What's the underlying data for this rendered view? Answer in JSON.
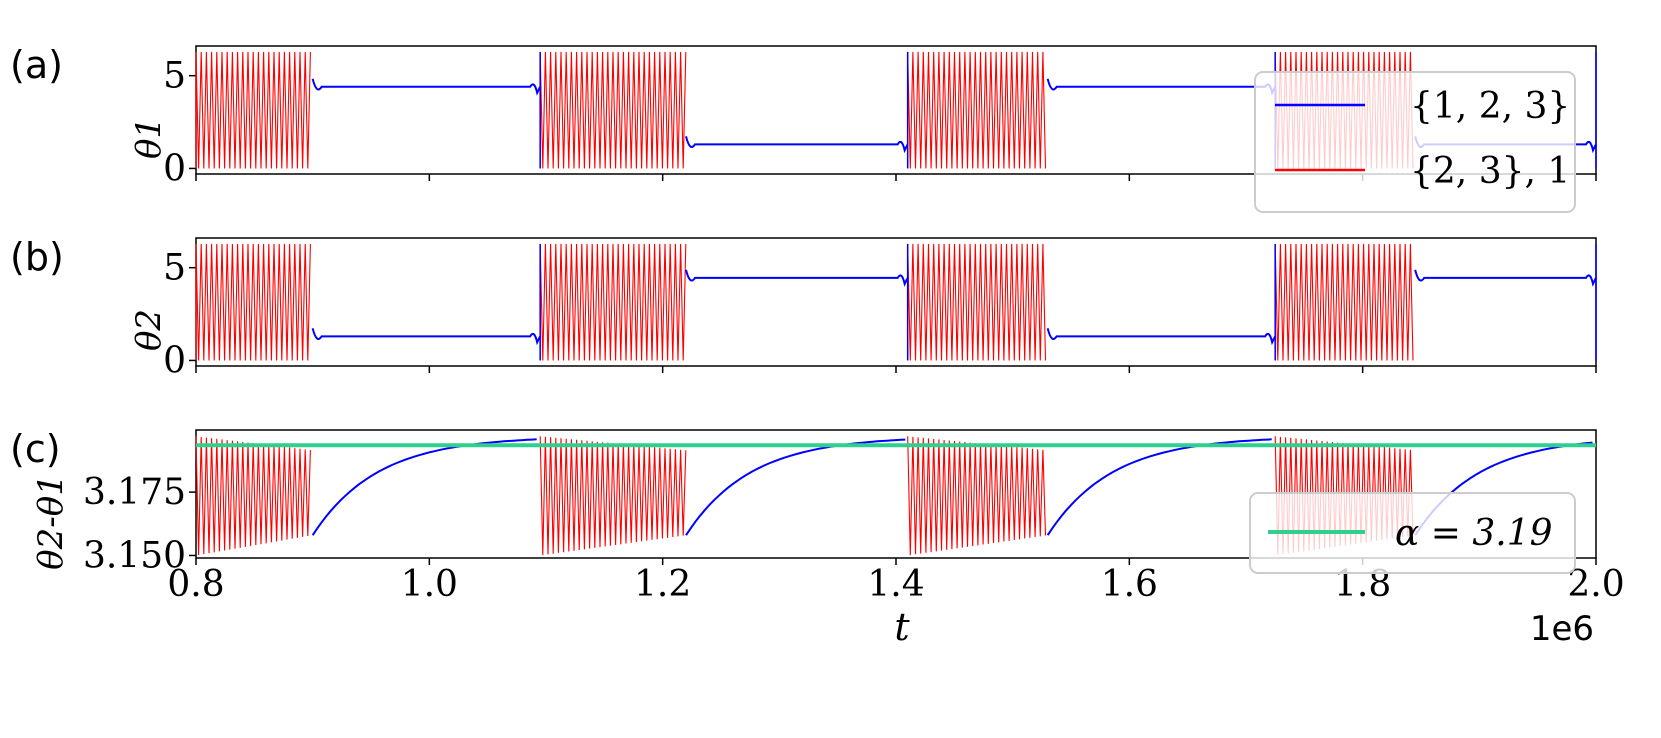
{
  "figure": {
    "panel_labels": [
      "(a)",
      "(b)",
      "(c)"
    ],
    "xlabel": "t",
    "x_offset_label": "1e6",
    "x_ticks": [
      "0.8",
      "1.0",
      "1.2",
      "1.4",
      "1.6",
      "1.8",
      "2.0"
    ]
  },
  "colors": {
    "series_123": "#0000ff",
    "series_23_1": "#ff0000",
    "alpha_line": "#2fcf8f",
    "axes": "#000000"
  },
  "chart_data": [
    {
      "type": "line",
      "panel": "(a)",
      "ylabel": "θ1",
      "y_ticks": [
        "0",
        "5"
      ],
      "ylim": [
        -0.3,
        6.6
      ],
      "xlim": [
        0.8,
        2.0
      ],
      "x_scale": "1e6",
      "legend": {
        "position": "right",
        "entries": [
          {
            "label": "{1, 2, 3}",
            "color": "#0000ff"
          },
          {
            "label": "{2, 3}, 1",
            "color": "#ff0000"
          }
        ]
      },
      "oscillation_intervals": [
        [
          0.8,
          0.9
        ],
        [
          1.095,
          1.22
        ],
        [
          1.41,
          1.53
        ],
        [
          1.725,
          1.845
        ]
      ],
      "plateaus": [
        {
          "x": [
            0.9,
            1.095
          ],
          "value": 4.4
        },
        {
          "x": [
            1.22,
            1.41
          ],
          "value": 1.3
        },
        {
          "x": [
            1.53,
            1.725
          ],
          "value": 4.4
        },
        {
          "x": [
            1.845,
            2.0
          ],
          "value": 1.3
        }
      ],
      "oscillation_range": [
        0,
        6.28
      ]
    },
    {
      "type": "line",
      "panel": "(b)",
      "ylabel": "θ2",
      "y_ticks": [
        "0",
        "5"
      ],
      "ylim": [
        -0.3,
        6.6
      ],
      "xlim": [
        0.8,
        2.0
      ],
      "x_scale": "1e6",
      "oscillation_intervals": [
        [
          0.8,
          0.9
        ],
        [
          1.095,
          1.22
        ],
        [
          1.41,
          1.53
        ],
        [
          1.725,
          1.845
        ]
      ],
      "plateaus": [
        {
          "x": [
            0.9,
            1.095
          ],
          "value": 1.3
        },
        {
          "x": [
            1.22,
            1.41
          ],
          "value": 4.45
        },
        {
          "x": [
            1.53,
            1.725
          ],
          "value": 1.3
        },
        {
          "x": [
            1.845,
            2.0
          ],
          "value": 4.45
        }
      ],
      "oscillation_range": [
        0,
        6.28
      ]
    },
    {
      "type": "line",
      "panel": "(c)",
      "ylabel": "θ2-θ1",
      "y_ticks": [
        "3.150",
        "3.175"
      ],
      "y_tick_values": [
        3.15,
        3.175
      ],
      "ylim": [
        3.149,
        3.1995
      ],
      "xlim": [
        0.8,
        2.0
      ],
      "x_scale": "1e6",
      "hline": {
        "label": "α = 3.19",
        "value": 3.1935,
        "color": "#2fcf8f"
      },
      "legend": {
        "position": "lower right"
      },
      "oscillation_intervals": [
        [
          0.8,
          0.9
        ],
        [
          1.095,
          1.22
        ],
        [
          1.41,
          1.53
        ],
        [
          1.725,
          1.845
        ]
      ],
      "oscillation_envelope": {
        "upper": [
          3.197,
          3.1915
        ],
        "lower": [
          3.15,
          3.158
        ]
      },
      "relaxation": {
        "start_value": 3.158,
        "end_value": 3.197
      }
    }
  ]
}
